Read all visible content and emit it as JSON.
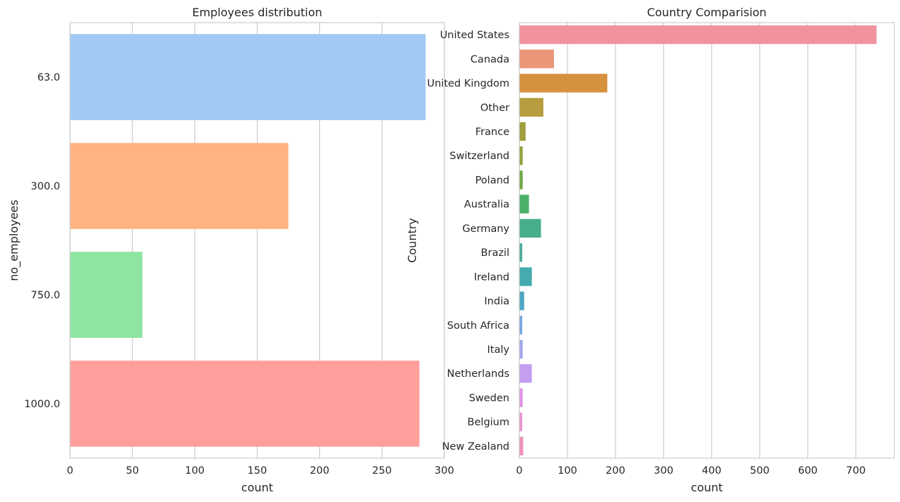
{
  "chart_data": [
    {
      "type": "bar",
      "orientation": "horizontal",
      "title": "Employees distribution",
      "xlabel": "count",
      "ylabel": "no_employees",
      "xlim": [
        0,
        300
      ],
      "xticks": [
        "0",
        "50",
        "100",
        "150",
        "200",
        "250",
        "300"
      ],
      "categories": [
        "63.0",
        "300.0",
        "750.0",
        "1000.0"
      ],
      "values": [
        285,
        175,
        58,
        280
      ],
      "colors": [
        "#a1c9f4",
        "#ffb482",
        "#8de5a1",
        "#ff9f9b"
      ],
      "grid": "vertical"
    },
    {
      "type": "bar",
      "orientation": "horizontal",
      "title": "Country Comparision",
      "xlabel": "count",
      "ylabel": "Country",
      "xlim": [
        0,
        780
      ],
      "xticks": [
        "0",
        "100",
        "200",
        "300",
        "400",
        "500",
        "600",
        "700"
      ],
      "categories": [
        "United States",
        "Canada",
        "United Kingdom",
        "Other",
        "France",
        "Switzerland",
        "Poland",
        "Australia",
        "Germany",
        "Brazil",
        "Ireland",
        "India",
        "South Africa",
        "Italy",
        "Netherlands",
        "Sweden",
        "Belgium",
        "New Zealand"
      ],
      "values": [
        743,
        72,
        183,
        50,
        13,
        7,
        7,
        20,
        45,
        6,
        26,
        10,
        6,
        7,
        26,
        7,
        6,
        8
      ],
      "colors": [
        "#f0939f",
        "#ea9779",
        "#d6913e",
        "#b79c40",
        "#a09d3c",
        "#8ea43c",
        "#6ea945",
        "#4bb069",
        "#47ae8c",
        "#49ab9c",
        "#46aaaf",
        "#4ba6c4",
        "#76a6e0",
        "#a2a6ec",
        "#c49ef0",
        "#e194e8",
        "#ea93d1",
        "#ef91ba"
      ],
      "grid": "vertical"
    }
  ]
}
